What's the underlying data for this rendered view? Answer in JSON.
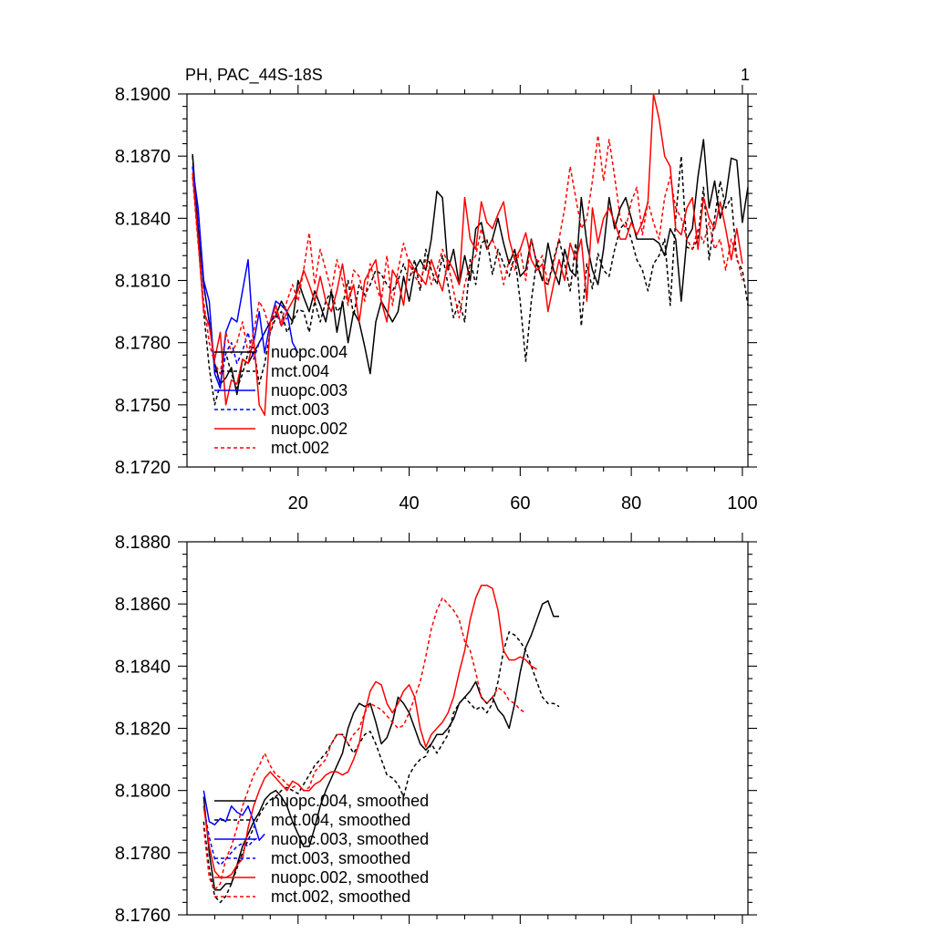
{
  "figure": {
    "title_left": "PH, PAC_44S-18S",
    "title_right": "1"
  },
  "colors": {
    "black": "#000000",
    "blue": "#0000ff",
    "red": "#ff0000"
  },
  "chart_data": [
    {
      "type": "line",
      "title": "PH, PAC_44S-18S",
      "panel_label": "1",
      "xlabel": "",
      "ylabel": "",
      "xlim": [
        0,
        101
      ],
      "ylim": [
        8.172,
        8.19
      ],
      "x_ticks": [
        20,
        40,
        60,
        80,
        100
      ],
      "y_ticks": [
        "8.1720",
        "8.1750",
        "8.1780",
        "8.1810",
        "8.1840",
        "8.1870",
        "8.1900"
      ],
      "legend_position": "lower-left",
      "series": [
        {
          "name": "nuopc.004",
          "color": "#000000",
          "dash": "solid",
          "x_start": 1,
          "values": [
            8.1871,
            8.1835,
            8.1808,
            8.179,
            8.177,
            8.176,
            8.1763,
            8.1768,
            8.1755,
            8.1772,
            8.177,
            8.1775,
            8.178,
            8.1785,
            8.179,
            8.1793,
            8.18,
            8.1795,
            8.179,
            8.181,
            8.1802,
            8.1795,
            8.1805,
            8.1798,
            8.179,
            8.1805,
            8.1785,
            8.18,
            8.178,
            8.1795,
            8.179,
            8.1778,
            8.1765,
            8.179,
            8.18,
            8.1795,
            8.179,
            8.1795,
            8.1812,
            8.18,
            8.1815,
            8.182,
            8.1815,
            8.183,
            8.1853,
            8.185,
            8.1815,
            8.1825,
            8.1808,
            8.1822,
            8.181,
            8.1835,
            8.1838,
            8.1825,
            8.183,
            8.184,
            8.1828,
            8.1818,
            8.1825,
            8.1812,
            8.1815,
            8.183,
            8.1818,
            8.181,
            8.1828,
            8.1815,
            8.1808,
            8.1825,
            8.1815,
            8.1812,
            8.185,
            8.1828,
            8.1815,
            8.1808,
            8.1825,
            8.185,
            8.1835,
            8.1845,
            8.185,
            8.184,
            8.183,
            8.183,
            8.183,
            8.183,
            8.1828,
            8.1822,
            8.1835,
            8.183,
            8.18,
            8.183,
            8.1835,
            8.186,
            8.1878,
            8.1845,
            8.1858,
            8.184,
            8.185,
            8.1869,
            8.1868,
            8.1838,
            8.1855
          ]
        },
        {
          "name": "mct.004",
          "color": "#000000",
          "dash": "dashed",
          "x_start": 1,
          "values": [
            8.187,
            8.183,
            8.1795,
            8.1768,
            8.175,
            8.176,
            8.1775,
            8.1765,
            8.1758,
            8.1765,
            8.1775,
            8.1778,
            8.176,
            8.177,
            8.1785,
            8.1792,
            8.1795,
            8.1785,
            8.179,
            8.1796,
            8.1795,
            8.1785,
            8.18,
            8.179,
            8.18,
            8.1805,
            8.1795,
            8.1798,
            8.181,
            8.1793,
            8.1808,
            8.1803,
            8.1808,
            8.1815,
            8.1813,
            8.1808,
            8.1805,
            8.181,
            8.1818,
            8.181,
            8.182,
            8.1805,
            8.1825,
            8.1815,
            8.1808,
            8.1822,
            8.1808,
            8.1792,
            8.18,
            8.179,
            8.182,
            8.1808,
            8.1828,
            8.183,
            8.1813,
            8.1825,
            8.1818,
            8.1812,
            8.1822,
            8.18,
            8.1771,
            8.18,
            8.182,
            8.181,
            8.1808,
            8.182,
            8.183,
            8.1818,
            8.1805,
            8.1828,
            8.1788,
            8.1818,
            8.1806,
            8.1823,
            8.1815,
            8.1812,
            8.1825,
            8.1835,
            8.1838,
            8.183,
            8.182,
            8.1815,
            8.1805,
            8.1818,
            8.1822,
            8.183,
            8.1798,
            8.184,
            8.187,
            8.1826,
            8.1825,
            8.183,
            8.1855,
            8.182,
            8.184,
            8.1858,
            8.1845,
            8.185,
            8.182,
            8.1815,
            8.1798
          ]
        },
        {
          "name": "nuopc.003",
          "color": "#0000ff",
          "dash": "solid",
          "x_start": 1,
          "values": [
            8.1865,
            8.1845,
            8.181,
            8.18,
            8.1765,
            8.1758,
            8.1785,
            8.1792,
            8.179,
            8.1805,
            8.182,
            8.178,
            8.1795,
            8.1775,
            8.179,
            8.18,
            8.1798,
            8.1795,
            8.178,
            8.1775
          ]
        },
        {
          "name": "mct.003",
          "color": "#0000ff",
          "dash": "dashed",
          "x_start": 1,
          "values": [
            8.1865,
            8.184,
            8.1808,
            8.179,
            8.1768,
            8.176,
            8.1775,
            8.178,
            8.177,
            8.1776,
            8.1785,
            8.1772,
            8.178,
            8.1785,
            8.179,
            8.1795,
            8.1788,
            8.1792
          ]
        },
        {
          "name": "nuopc.002",
          "color": "#ff0000",
          "dash": "solid",
          "x_start": 1,
          "values": [
            8.1862,
            8.183,
            8.1795,
            8.1788,
            8.1772,
            8.1785,
            8.175,
            8.1762,
            8.176,
            8.1772,
            8.177,
            8.1782,
            8.175,
            8.1745,
            8.179,
            8.1798,
            8.1788,
            8.1795,
            8.18,
            8.1805,
            8.1815,
            8.1808,
            8.18,
            8.1812,
            8.18,
            8.1795,
            8.1805,
            8.1818,
            8.18,
            8.1808,
            8.179,
            8.181,
            8.1815,
            8.182,
            8.18,
            8.179,
            8.1815,
            8.181,
            8.1798,
            8.182,
            8.1815,
            8.1812,
            8.1808,
            8.182,
            8.1812,
            8.1805,
            8.182,
            8.1815,
            8.1808,
            8.185,
            8.183,
            8.1825,
            8.1848,
            8.1838,
            8.1835,
            8.1842,
            8.1848,
            8.183,
            8.182,
            8.1825,
            8.1833,
            8.182,
            8.1815,
            8.1818,
            8.1795,
            8.1808,
            8.182,
            8.181,
            8.1828,
            8.182,
            8.183,
            8.18,
            8.1845,
            8.1828,
            8.184,
            8.1845,
            8.1838,
            8.183,
            8.183,
            8.1838,
            8.1832,
            8.1838,
            8.1848,
            8.19,
            8.1888,
            8.187,
            8.1865,
            8.1835,
            8.1832,
            8.1845,
            8.185,
            8.1825,
            8.185,
            8.184,
            8.1835,
            8.1848,
            8.1835,
            8.182,
            8.1835,
            8.1818
          ]
        },
        {
          "name": "mct.002",
          "color": "#ff0000",
          "dash": "dashed",
          "x_start": 1,
          "values": [
            8.186,
            8.1828,
            8.18,
            8.178,
            8.177,
            8.1765,
            8.1785,
            8.1775,
            8.178,
            8.179,
            8.1775,
            8.1785,
            8.18,
            8.1795,
            8.1785,
            8.1795,
            8.179,
            8.18,
            8.1808,
            8.18,
            8.1815,
            8.1833,
            8.1808,
            8.1825,
            8.1815,
            8.1805,
            8.182,
            8.181,
            8.1798,
            8.1815,
            8.1812,
            8.18,
            8.1818,
            8.1808,
            8.18,
            8.1822,
            8.1798,
            8.1815,
            8.1828,
            8.1818,
            8.1812,
            8.1808,
            8.182,
            8.1808,
            8.1815,
            8.1825,
            8.1818,
            8.1805,
            8.1792,
            8.1808,
            8.1818,
            8.1822,
            8.1835,
            8.1825,
            8.183,
            8.1822,
            8.1808,
            8.182,
            8.1815,
            8.1825,
            8.181,
            8.183,
            8.1818,
            8.1822,
            8.1808,
            8.1818,
            8.183,
            8.1845,
            8.1865,
            8.185,
            8.1835,
            8.184,
            8.1858,
            8.188,
            8.1858,
            8.1878,
            8.186,
            8.184,
            8.1835,
            8.1848,
            8.1855,
            8.1832,
            8.1848,
            8.1838,
            8.183,
            8.185,
            8.186,
            8.1845,
            8.184,
            8.183,
            8.1825,
            8.1835,
            8.1828,
            8.1838,
            8.1825,
            8.183,
            8.1815,
            8.183,
            8.1822,
            8.181
          ]
        }
      ]
    },
    {
      "type": "line",
      "title": "",
      "xlabel": "",
      "ylabel": "",
      "xlim": [
        0,
        101
      ],
      "ylim": [
        8.176,
        8.188
      ],
      "x_ticks": [
        20,
        40,
        60,
        80,
        100
      ],
      "y_ticks": [
        "8.1760",
        "8.1780",
        "8.1800",
        "8.1820",
        "8.1840",
        "8.1860",
        "8.1880"
      ],
      "legend_position": "lower-left",
      "series": [
        {
          "name": "nuopc.004, smoothed",
          "color": "#000000",
          "dash": "solid",
          "x_start": 3,
          "values": [
            8.1798,
            8.178,
            8.1768,
            8.1768,
            8.177,
            8.177,
            8.1776,
            8.1782,
            8.1786,
            8.179,
            8.1793,
            8.1797,
            8.1799,
            8.18,
            8.1798,
            8.1795,
            8.179,
            8.1786,
            8.1782,
            8.1782,
            8.1788,
            8.1795,
            8.18,
            8.1804,
            8.1808,
            8.1812,
            8.182,
            8.1825,
            8.1828,
            8.1827,
            8.1828,
            8.1822,
            8.1815,
            8.1817,
            8.1822,
            8.183,
            8.1828,
            8.1825,
            8.182,
            8.1815,
            8.1813,
            8.1815,
            8.1818,
            8.1818,
            8.182,
            8.1823,
            8.1828,
            8.183,
            8.1832,
            8.1835,
            8.183,
            8.1828,
            8.183,
            8.1826,
            8.1824,
            8.182,
            8.1828,
            8.1838,
            8.1846,
            8.185,
            8.1855,
            8.186,
            8.1861,
            8.1856,
            8.1856
          ]
        },
        {
          "name": "mct.004, smoothed",
          "color": "#000000",
          "dash": "dashed",
          "x_start": 3,
          "values": [
            8.179,
            8.1775,
            8.1766,
            8.1764,
            8.1766,
            8.177,
            8.1775,
            8.178,
            8.1784,
            8.1788,
            8.1792,
            8.1795,
            8.1797,
            8.1798,
            8.18,
            8.1801,
            8.18,
            8.1799,
            8.1802,
            8.1805,
            8.1808,
            8.181,
            8.1812,
            8.1815,
            8.1818,
            8.1818,
            8.1815,
            8.1812,
            8.1815,
            8.1818,
            8.1819,
            8.1815,
            8.181,
            8.1805,
            8.1804,
            8.1802,
            8.1798,
            8.1805,
            8.1808,
            8.181,
            8.1811,
            8.1815,
            8.1812,
            8.1815,
            8.1818,
            8.1825,
            8.1828,
            8.183,
            8.1828,
            8.1826,
            8.1827,
            8.1825,
            8.1828,
            8.1835,
            8.1845,
            8.1851,
            8.185,
            8.1848,
            8.1845,
            8.184,
            8.1835,
            8.183,
            8.1828,
            8.1828,
            8.1827
          ]
        },
        {
          "name": "nuopc.003, smoothed",
          "color": "#0000ff",
          "dash": "solid",
          "x_start": 3,
          "values": [
            8.18,
            8.179,
            8.1789,
            8.1791,
            8.179,
            8.1795,
            8.1793,
            8.1792,
            8.1795,
            8.179,
            8.1784,
            8.1786
          ]
        },
        {
          "name": "mct.003, smoothed",
          "color": "#0000ff",
          "dash": "dashed",
          "x_start": 3,
          "values": [
            8.1795,
            8.1785,
            8.1778,
            8.1776,
            8.1778,
            8.178,
            8.1782,
            8.1783,
            8.1782,
            8.1784,
            8.1785
          ]
        },
        {
          "name": "nuopc.002, smoothed",
          "color": "#ff0000",
          "dash": "solid",
          "x_start": 3,
          "values": [
            8.1795,
            8.1782,
            8.1774,
            8.1772,
            8.1772,
            8.1773,
            8.1776,
            8.1778,
            8.1788,
            8.1795,
            8.18,
            8.1804,
            8.1806,
            8.1804,
            8.1802,
            8.18,
            8.1803,
            8.1802,
            8.18,
            8.18,
            8.1802,
            8.1803,
            8.1805,
            8.1806,
            8.1806,
            8.1805,
            8.1806,
            8.181,
            8.1815,
            8.1825,
            8.1832,
            8.1835,
            8.1834,
            8.1828,
            8.1825,
            8.1828,
            8.1832,
            8.1834,
            8.183,
            8.182,
            8.1814,
            8.1818,
            8.182,
            8.1822,
            8.1825,
            8.183,
            8.1838,
            8.1845,
            8.1855,
            8.1862,
            8.1866,
            8.1866,
            8.1865,
            8.1858,
            8.1845,
            8.1842,
            8.1842,
            8.1843,
            8.1842,
            8.184,
            8.1839
          ]
        },
        {
          "name": "mct.002, smoothed",
          "color": "#ff0000",
          "dash": "dashed",
          "x_start": 3,
          "values": [
            8.1788,
            8.1772,
            8.1768,
            8.177,
            8.1778,
            8.1782,
            8.1788,
            8.1795,
            8.18,
            8.1805,
            8.1808,
            8.1812,
            8.1808,
            8.1805,
            8.1804,
            8.1802,
            8.1801,
            8.1802,
            8.18,
            8.1801,
            8.1806,
            8.1808,
            8.181,
            8.1815,
            8.1818,
            8.1818,
            8.1815,
            8.1818,
            8.182,
            8.1825,
            8.1828,
            8.1827,
            8.1826,
            8.1824,
            8.1822,
            8.182,
            8.1821,
            8.1825,
            8.183,
            8.1835,
            8.1843,
            8.1852,
            8.1858,
            8.1862,
            8.186,
            8.1858,
            8.1855,
            8.1848,
            8.1845,
            8.1838,
            8.183,
            8.1828,
            8.183,
            8.1833,
            8.1832,
            8.1829,
            8.1828,
            8.1826,
            8.1825
          ]
        }
      ]
    }
  ]
}
